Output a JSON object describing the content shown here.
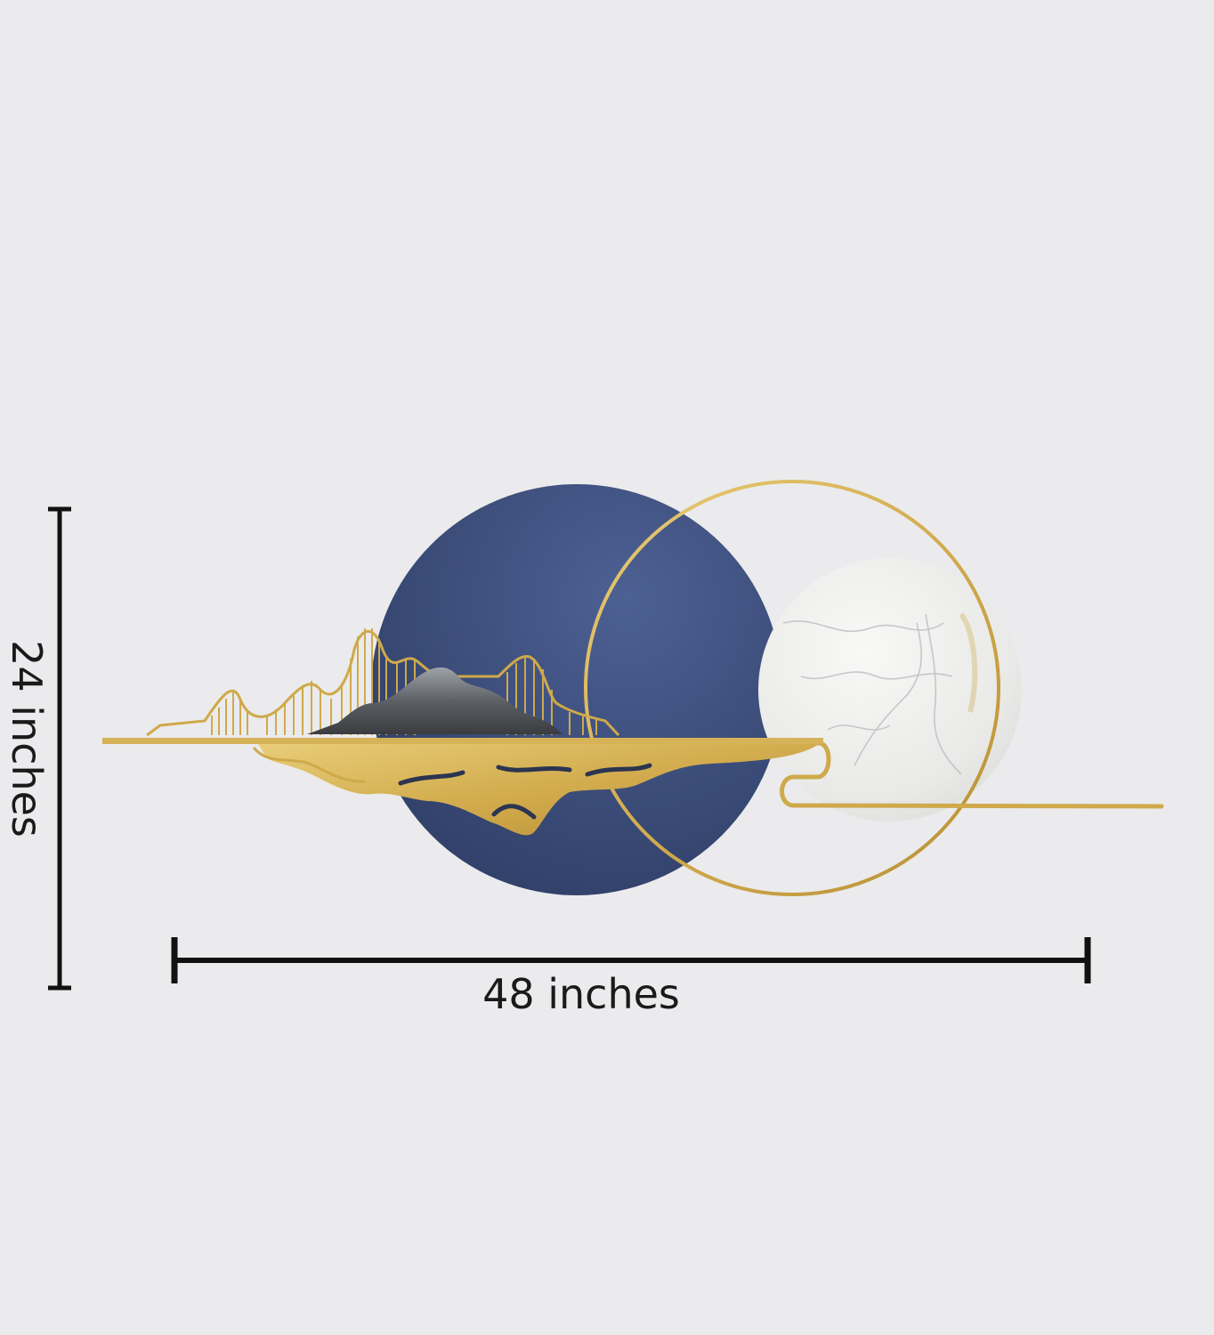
{
  "dimensions": {
    "width_label": "48 inches",
    "height_label": "24 inches"
  },
  "colors": {
    "background": "#ebebed",
    "navy_disc": "#3d4f7c",
    "gold": "#d4b054",
    "marble": "#ecebe8",
    "ink": "#111111"
  }
}
